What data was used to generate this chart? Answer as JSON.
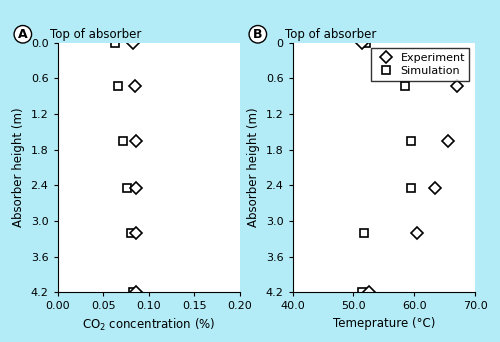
{
  "background_color": "#b3ecf7",
  "panel_A": {
    "title": "Top of absorber",
    "xlabel": "CO$_2$ concentration (%)",
    "ylabel": "Absorber height (m)",
    "xlim": [
      0.0,
      0.2
    ],
    "ylim": [
      4.2,
      0.0
    ],
    "xticks": [
      0.0,
      0.05,
      0.1,
      0.15,
      0.2
    ],
    "xtick_labels": [
      "0.00",
      "0.05",
      "0.10",
      "0.15",
      "0.20"
    ],
    "yticks": [
      0.0,
      0.6,
      1.2,
      1.8,
      2.4,
      3.0,
      3.6,
      4.2
    ],
    "ytick_labels": [
      "0.0",
      "0.6",
      "1.2",
      "1.8",
      "2.4",
      "3.0",
      "3.6",
      "4.2"
    ],
    "sim_x": [
      0.063,
      0.066,
      0.072,
      0.076,
      0.081,
      0.083
    ],
    "sim_y": [
      0.0,
      0.72,
      1.65,
      2.45,
      3.2,
      4.2
    ],
    "exp_x": [
      0.083,
      0.085,
      0.086,
      0.086,
      0.086,
      0.086
    ],
    "exp_y": [
      0.0,
      0.72,
      1.65,
      2.45,
      3.2,
      4.2
    ]
  },
  "panel_B": {
    "title": "Top of absorber",
    "xlabel": "Temeprature (°C)",
    "ylabel": "Absorber height (m)",
    "xlim": [
      40.0,
      70.0
    ],
    "ylim": [
      4.2,
      0.0
    ],
    "xticks": [
      40.0,
      50.0,
      60.0,
      70.0
    ],
    "xtick_labels": [
      "40.0",
      "50.0",
      "60.0",
      "70.0"
    ],
    "yticks": [
      0.0,
      0.6,
      1.2,
      1.8,
      2.4,
      3.0,
      3.6,
      4.2
    ],
    "ytick_labels": [
      "0",
      "0.6",
      "1.2",
      "1.8",
      "2.4",
      "3.0",
      "3.6",
      "4.2"
    ],
    "sim_x": [
      52.0,
      58.5,
      59.5,
      59.5,
      51.8,
      51.5
    ],
    "sim_y": [
      0.0,
      0.72,
      1.65,
      2.45,
      3.2,
      4.2
    ],
    "exp_x": [
      67.0,
      65.5,
      63.5,
      60.5,
      52.5,
      51.5
    ],
    "exp_y": [
      0.72,
      1.65,
      2.45,
      3.2,
      4.2,
      0.0
    ]
  },
  "legend_labels": [
    "Experiment",
    "Simulation"
  ],
  "sim_marker": "s",
  "exp_marker": "D",
  "marker_size": 6,
  "marker_color": "black",
  "marker_facecolor_sim": "white",
  "marker_facecolor_exp": "white"
}
